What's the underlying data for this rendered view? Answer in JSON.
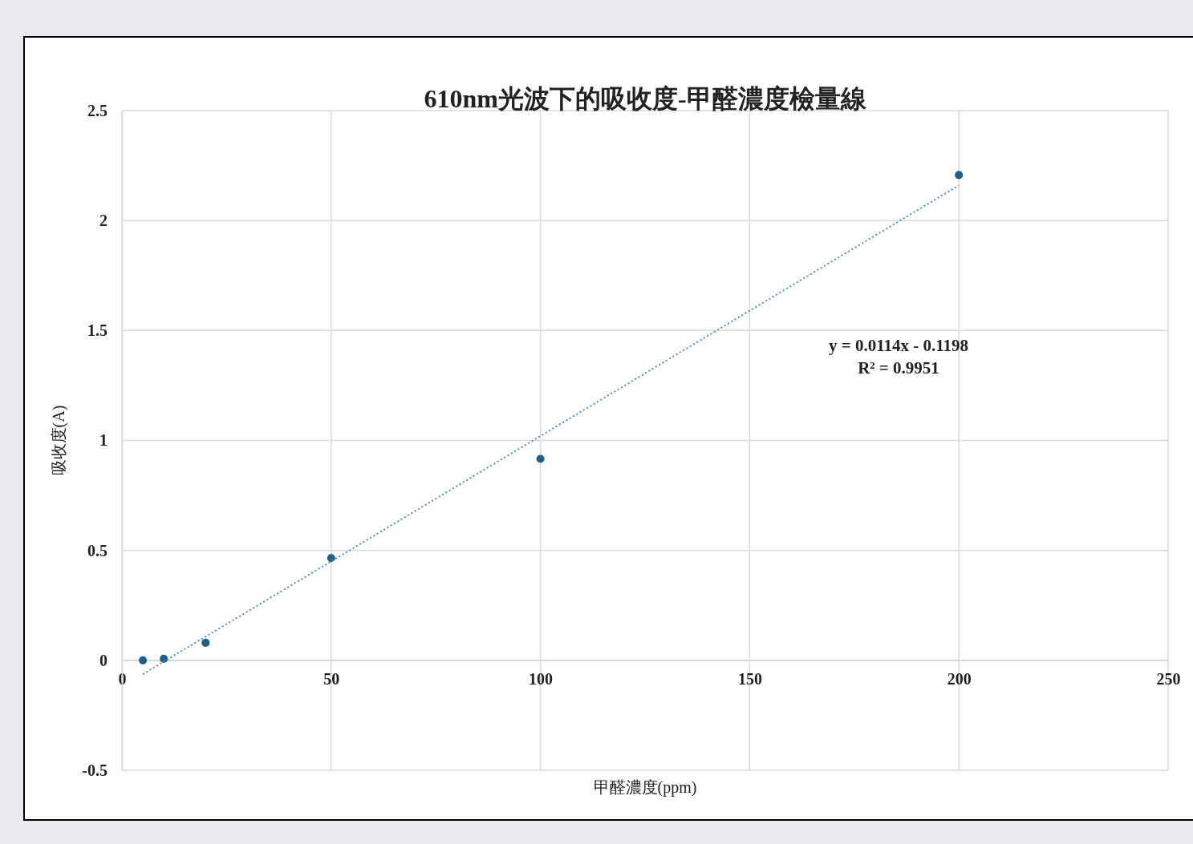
{
  "chart_data": {
    "type": "scatter",
    "title": "610nm光波下的吸收度-甲醛濃度檢量線",
    "xlabel": "甲醛濃度(ppm)",
    "ylabel": "吸收度(A)",
    "xlim": [
      0,
      250
    ],
    "xticks": [
      0,
      50,
      100,
      150,
      200,
      250
    ],
    "ylim": [
      -0.5,
      2.5
    ],
    "yticks": [
      -0.5,
      0,
      0.5,
      1,
      1.5,
      2,
      2.5
    ],
    "grid": true,
    "marker": "circle",
    "series": [
      {
        "type": "scatter",
        "color": "#1f5f8b",
        "x": [
          5,
          10,
          20,
          50,
          100,
          200
        ],
        "values": [
          0,
          0.007,
          0.08,
          0.465,
          0.916,
          2.207
        ]
      },
      {
        "type": "line",
        "color": "#4a8fc4",
        "line_style": "dotted",
        "marker": "none",
        "x": [
          5,
          200
        ],
        "values": [
          -0.063,
          2.16
        ]
      }
    ],
    "annotations": [
      "y = 0.0114x - 0.1198",
      "R² = 0.9951"
    ]
  }
}
